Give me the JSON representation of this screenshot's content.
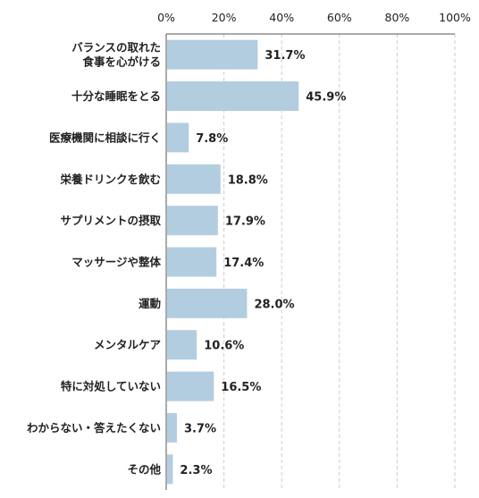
{
  "chart_data": {
    "type": "bar",
    "orientation": "horizontal",
    "categories": [
      "バランスの取れた\n食事を心がける",
      "十分な睡眠をとる",
      "医療機関に相談に行く",
      "栄養ドリンクを飲む",
      "サプリメントの摂取",
      "マッサージや整体",
      "運動",
      "メンタルケア",
      "特に対処していない",
      "わからない・答えたくない",
      "その他"
    ],
    "values": [
      31.7,
      45.9,
      7.8,
      18.8,
      17.9,
      17.4,
      28.0,
      10.6,
      16.5,
      3.7,
      2.3
    ],
    "value_labels": [
      "31.7%",
      "45.9%",
      "7.8%",
      "18.8%",
      "17.9%",
      "17.4%",
      "28.0%",
      "10.6%",
      "16.5%",
      "3.7%",
      "2.3%"
    ],
    "x_ticks": [
      0,
      20,
      40,
      60,
      80,
      100
    ],
    "x_tick_labels": [
      "0%",
      "20%",
      "40%",
      "60%",
      "80%",
      "100%"
    ],
    "xlim": [
      0,
      100
    ],
    "grid": "vertical dashed",
    "bar_color": "#b3cde0",
    "axis_color": "#555555",
    "grid_color": "#cccccc",
    "title": "",
    "xlabel": "",
    "ylabel": ""
  }
}
